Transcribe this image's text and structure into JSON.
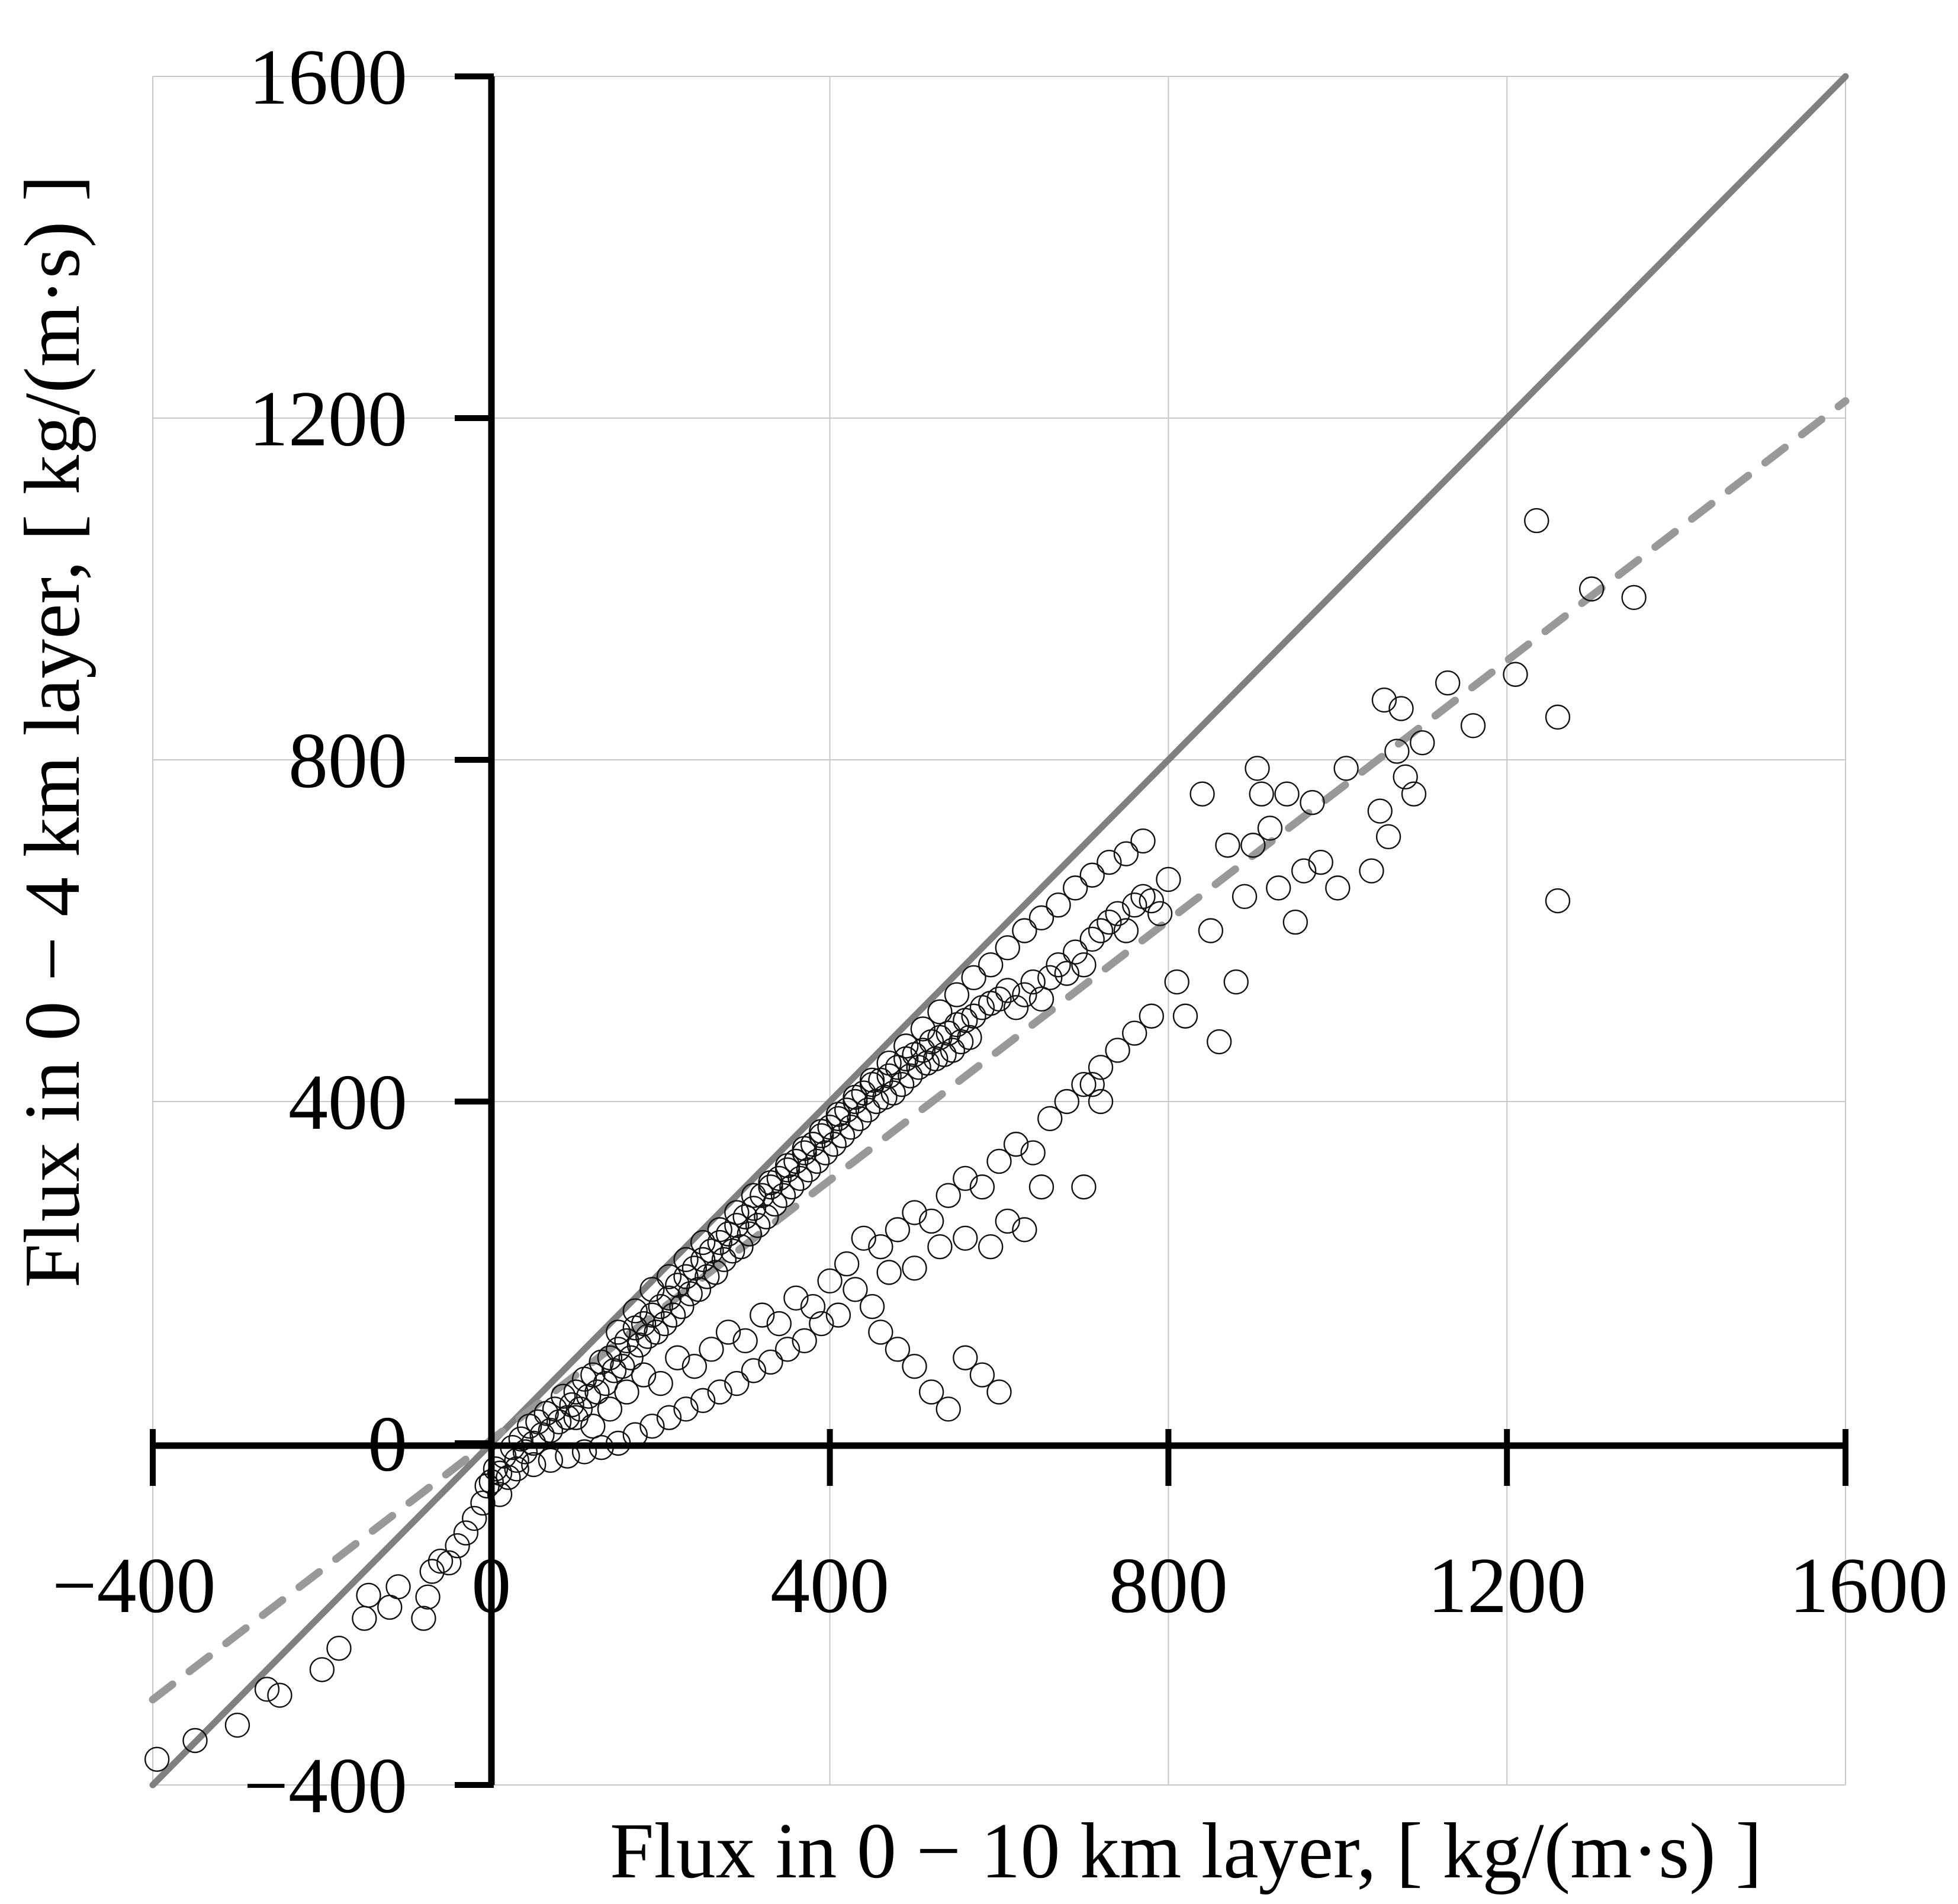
{
  "chart_data": {
    "type": "scatter",
    "title": "",
    "xlabel": "Flux in 0 − 10 km layer, [ kg/(m·s) ]",
    "ylabel": "Flux in 0 − 4 km layer, [ kg/(m·s) ]",
    "xlim": [
      -400,
      1600
    ],
    "ylim": [
      -400,
      1600
    ],
    "x_ticks": [
      -400,
      0,
      400,
      800,
      1200,
      1600
    ],
    "y_ticks": [
      -400,
      0,
      400,
      800,
      1200,
      1600
    ],
    "x_tick_labels": [
      "−400",
      "0",
      "400",
      "800",
      "1200",
      "1600"
    ],
    "y_tick_labels": [
      "−400",
      "0",
      "400",
      "800",
      "1200",
      "1600"
    ],
    "grid": true,
    "legend": "none",
    "reference_lines": [
      {
        "name": "one-to-one",
        "style": "solid",
        "color": "#808080",
        "x": [
          -400,
          1600
        ],
        "y": [
          -400,
          1600
        ]
      },
      {
        "name": "regression-fit",
        "style": "dashed",
        "color": "#999999",
        "x": [
          -400,
          1600
        ],
        "y": [
          -300,
          1220
        ]
      }
    ],
    "series": [
      {
        "name": "samples",
        "marker": "open-circle",
        "points": [
          [
            -395,
            -370
          ],
          [
            -350,
            -348
          ],
          [
            -300,
            -330
          ],
          [
            -265,
            -288
          ],
          [
            -250,
            -295
          ],
          [
            -200,
            -265
          ],
          [
            -180,
            -240
          ],
          [
            -150,
            -205
          ],
          [
            -145,
            -178
          ],
          [
            -120,
            -192
          ],
          [
            -110,
            -168
          ],
          [
            -80,
            -205
          ],
          [
            -75,
            -180
          ],
          [
            -70,
            -150
          ],
          [
            -60,
            -138
          ],
          [
            -50,
            -140
          ],
          [
            -40,
            -120
          ],
          [
            -30,
            -105
          ],
          [
            -20,
            -88
          ],
          [
            -10,
            -70
          ],
          [
            0,
            -45
          ],
          [
            5,
            -30
          ],
          [
            10,
            -60
          ],
          [
            -5,
            -50
          ],
          [
            15,
            -15
          ],
          [
            20,
            -40
          ],
          [
            25,
            -5
          ],
          [
            30,
            -20
          ],
          [
            35,
            5
          ],
          [
            40,
            -10
          ],
          [
            45,
            20
          ],
          [
            50,
            0
          ],
          [
            55,
            25
          ],
          [
            60,
            10
          ],
          [
            65,
            35
          ],
          [
            70,
            15
          ],
          [
            75,
            40
          ],
          [
            80,
            25
          ],
          [
            85,
            55
          ],
          [
            90,
            30
          ],
          [
            95,
            45
          ],
          [
            100,
            60
          ],
          [
            105,
            40
          ],
          [
            110,
            75
          ],
          [
            115,
            55
          ],
          [
            120,
            80
          ],
          [
            125,
            60
          ],
          [
            130,
            95
          ],
          [
            135,
            70
          ],
          [
            140,
            100
          ],
          [
            145,
            85
          ],
          [
            150,
            110
          ],
          [
            155,
            90
          ],
          [
            160,
            120
          ],
          [
            165,
            100
          ],
          [
            170,
            135
          ],
          [
            175,
            115
          ],
          [
            180,
            140
          ],
          [
            185,
            125
          ],
          [
            190,
            150
          ],
          [
            195,
            130
          ],
          [
            200,
            160
          ],
          [
            205,
            140
          ],
          [
            210,
            170
          ],
          [
            215,
            150
          ],
          [
            220,
            185
          ],
          [
            225,
            160
          ],
          [
            230,
            195
          ],
          [
            235,
            175
          ],
          [
            240,
            205
          ],
          [
            245,
            180
          ],
          [
            250,
            215
          ],
          [
            255,
            195
          ],
          [
            260,
            225
          ],
          [
            265,
            200
          ],
          [
            270,
            235
          ],
          [
            275,
            215
          ],
          [
            280,
            245
          ],
          [
            285,
            225
          ],
          [
            290,
            255
          ],
          [
            295,
            230
          ],
          [
            300,
            265
          ],
          [
            305,
            245
          ],
          [
            310,
            275
          ],
          [
            315,
            255
          ],
          [
            320,
            290
          ],
          [
            325,
            265
          ],
          [
            330,
            300
          ],
          [
            335,
            280
          ],
          [
            340,
            310
          ],
          [
            345,
            290
          ],
          [
            350,
            320
          ],
          [
            355,
            300
          ],
          [
            360,
            330
          ],
          [
            365,
            310
          ],
          [
            370,
            340
          ],
          [
            375,
            320
          ],
          [
            380,
            350
          ],
          [
            385,
            330
          ],
          [
            390,
            360
          ],
          [
            395,
            340
          ],
          [
            400,
            370
          ],
          [
            405,
            350
          ],
          [
            410,
            380
          ],
          [
            415,
            360
          ],
          [
            420,
            390
          ],
          [
            425,
            370
          ],
          [
            430,
            400
          ],
          [
            435,
            380
          ],
          [
            440,
            410
          ],
          [
            445,
            390
          ],
          [
            450,
            420
          ],
          [
            455,
            400
          ],
          [
            460,
            425
          ],
          [
            465,
            405
          ],
          [
            470,
            430
          ],
          [
            475,
            410
          ],
          [
            480,
            440
          ],
          [
            485,
            420
          ],
          [
            490,
            450
          ],
          [
            495,
            430
          ],
          [
            500,
            455
          ],
          [
            505,
            440
          ],
          [
            510,
            460
          ],
          [
            515,
            445
          ],
          [
            520,
            470
          ],
          [
            525,
            450
          ],
          [
            530,
            475
          ],
          [
            535,
            455
          ],
          [
            540,
            480
          ],
          [
            545,
            460
          ],
          [
            550,
            490
          ],
          [
            555,
            470
          ],
          [
            560,
            495
          ],
          [
            565,
            475
          ],
          [
            570,
            500
          ],
          [
            580,
            510
          ],
          [
            590,
            515
          ],
          [
            600,
            520
          ],
          [
            610,
            530
          ],
          [
            620,
            510
          ],
          [
            630,
            525
          ],
          [
            640,
            540
          ],
          [
            650,
            520
          ],
          [
            660,
            545
          ],
          [
            670,
            560
          ],
          [
            680,
            550
          ],
          [
            690,
            575
          ],
          [
            700,
            560
          ],
          [
            710,
            590
          ],
          [
            720,
            600
          ],
          [
            730,
            610
          ],
          [
            740,
            620
          ],
          [
            750,
            600
          ],
          [
            760,
            630
          ],
          [
            770,
            640
          ],
          [
            780,
            635
          ],
          [
            790,
            620
          ],
          [
            800,
            660
          ],
          [
            810,
            540
          ],
          [
            820,
            500
          ],
          [
            840,
            760
          ],
          [
            850,
            600
          ],
          [
            860,
            470
          ],
          [
            870,
            700
          ],
          [
            880,
            540
          ],
          [
            890,
            640
          ],
          [
            900,
            700
          ],
          [
            905,
            790
          ],
          [
            910,
            760
          ],
          [
            920,
            720
          ],
          [
            930,
            650
          ],
          [
            940,
            760
          ],
          [
            950,
            610
          ],
          [
            960,
            670
          ],
          [
            970,
            750
          ],
          [
            980,
            680
          ],
          [
            1000,
            650
          ],
          [
            1010,
            790
          ],
          [
            1040,
            670
          ],
          [
            1050,
            740
          ],
          [
            1055,
            870
          ],
          [
            1060,
            710
          ],
          [
            1070,
            810
          ],
          [
            1075,
            860
          ],
          [
            1080,
            780
          ],
          [
            1090,
            760
          ],
          [
            1100,
            820
          ],
          [
            1130,
            890
          ],
          [
            1160,
            840
          ],
          [
            1210,
            900
          ],
          [
            1235,
            1080
          ],
          [
            1260,
            850
          ],
          [
            1260,
            635
          ],
          [
            1300,
            1000
          ],
          [
            1350,
            990
          ],
          [
            100,
            30
          ],
          [
            120,
            20
          ],
          [
            140,
            40
          ],
          [
            160,
            60
          ],
          [
            180,
            80
          ],
          [
            200,
            70
          ],
          [
            220,
            100
          ],
          [
            240,
            90
          ],
          [
            260,
            110
          ],
          [
            280,
            130
          ],
          [
            300,
            120
          ],
          [
            320,
            150
          ],
          [
            340,
            140
          ],
          [
            360,
            170
          ],
          [
            380,
            160
          ],
          [
            400,
            190
          ],
          [
            420,
            210
          ],
          [
            440,
            240
          ],
          [
            460,
            230
          ],
          [
            480,
            250
          ],
          [
            500,
            270
          ],
          [
            520,
            260
          ],
          [
            540,
            290
          ],
          [
            560,
            310
          ],
          [
            580,
            300
          ],
          [
            600,
            330
          ],
          [
            620,
            350
          ],
          [
            640,
            340
          ],
          [
            660,
            380
          ],
          [
            680,
            400
          ],
          [
            700,
            420
          ],
          [
            720,
            440
          ],
          [
            740,
            460
          ],
          [
            760,
            480
          ],
          [
            780,
            500
          ],
          [
            460,
            130
          ],
          [
            470,
            200
          ],
          [
            500,
            205
          ],
          [
            530,
            230
          ],
          [
            560,
            240
          ],
          [
            590,
            230
          ],
          [
            610,
            260
          ],
          [
            630,
            250
          ],
          [
            650,
            300
          ],
          [
            700,
            300
          ],
          [
            720,
            400
          ],
          [
            710,
            420
          ],
          [
            560,
            100
          ],
          [
            580,
            80
          ],
          [
            600,
            60
          ],
          [
            540,
            40
          ],
          [
            520,
            60
          ],
          [
            500,
            90
          ],
          [
            480,
            110
          ],
          [
            450,
            160
          ],
          [
            430,
            180
          ],
          [
            410,
            150
          ],
          [
            390,
            140
          ],
          [
            370,
            120
          ],
          [
            350,
            110
          ],
          [
            330,
            95
          ],
          [
            310,
            85
          ],
          [
            290,
            70
          ],
          [
            270,
            60
          ],
          [
            250,
            50
          ],
          [
            230,
            40
          ],
          [
            210,
            30
          ],
          [
            190,
            20
          ],
          [
            170,
            10
          ],
          [
            150,
            0
          ],
          [
            130,
            -5
          ],
          [
            110,
            -10
          ],
          [
            90,
            -15
          ],
          [
            70,
            -20
          ],
          [
            50,
            -25
          ],
          [
            30,
            -30
          ],
          [
            10,
            -35
          ],
          [
            150,
            130
          ],
          [
            170,
            155
          ],
          [
            190,
            180
          ],
          [
            210,
            195
          ],
          [
            230,
            215
          ],
          [
            250,
            235
          ],
          [
            270,
            250
          ],
          [
            290,
            270
          ],
          [
            310,
            290
          ],
          [
            330,
            305
          ],
          [
            350,
            325
          ],
          [
            370,
            345
          ],
          [
            390,
            365
          ],
          [
            410,
            385
          ],
          [
            430,
            405
          ],
          [
            450,
            425
          ],
          [
            470,
            445
          ],
          [
            490,
            465
          ],
          [
            510,
            485
          ],
          [
            530,
            505
          ],
          [
            550,
            525
          ],
          [
            570,
            545
          ],
          [
            590,
            560
          ],
          [
            610,
            580
          ],
          [
            630,
            600
          ],
          [
            650,
            615
          ],
          [
            670,
            630
          ],
          [
            690,
            650
          ],
          [
            710,
            665
          ],
          [
            730,
            680
          ],
          [
            750,
            690
          ],
          [
            770,
            705
          ]
        ]
      }
    ]
  }
}
